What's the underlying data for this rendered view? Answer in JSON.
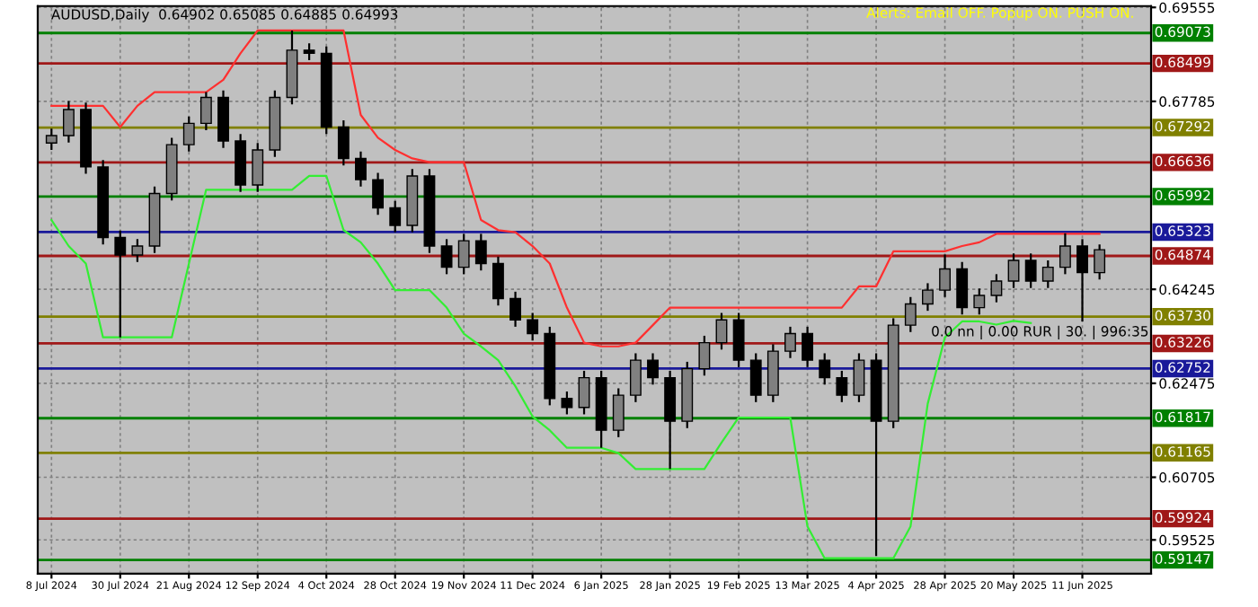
{
  "chart_data": {
    "type": "candlestick",
    "title": "AUDUSD,Daily  0.64902 0.65085 0.64885 0.64993",
    "categories": [
      "8 Jul 2024",
      null,
      null,
      null,
      "30 Jul 2024",
      null,
      null,
      null,
      "21 Aug 2024",
      null,
      null,
      null,
      "12 Sep 2024",
      null,
      null,
      null,
      "4 Oct 2024",
      null,
      null,
      null,
      "28 Oct 2024",
      null,
      null,
      null,
      "19 Nov 2024",
      null,
      null,
      null,
      "11 Dec 2024",
      null,
      null,
      null,
      "6 Jan 2025",
      null,
      null,
      null,
      "28 Jan 2025",
      null,
      null,
      null,
      "19 Feb 2025",
      null,
      null,
      null,
      "13 Mar 2025",
      null,
      null,
      null,
      "4 Apr 2025",
      null,
      null,
      null,
      "28 Apr 2025",
      null,
      null,
      null,
      "20 May 2025",
      null,
      null,
      null,
      "11 Jun 2025",
      null
    ],
    "ohlc": [
      [
        0.67,
        0.6727,
        0.6687,
        0.6714
      ],
      [
        0.6714,
        0.6779,
        0.6701,
        0.6763
      ],
      [
        0.6763,
        0.6776,
        0.6642,
        0.6655
      ],
      [
        0.6655,
        0.6668,
        0.6509,
        0.6522
      ],
      [
        0.6522,
        0.6535,
        0.6334,
        0.6489
      ],
      [
        0.6489,
        0.6519,
        0.6476,
        0.6506
      ],
      [
        0.6506,
        0.6618,
        0.6493,
        0.6605
      ],
      [
        0.6605,
        0.671,
        0.6592,
        0.6697
      ],
      [
        0.6697,
        0.675,
        0.6684,
        0.6737
      ],
      [
        0.6737,
        0.6796,
        0.6724,
        0.6786
      ],
      [
        0.6786,
        0.6799,
        0.6691,
        0.6704
      ],
      [
        0.6704,
        0.6717,
        0.6608,
        0.6621
      ],
      [
        0.6621,
        0.67,
        0.6608,
        0.6687
      ],
      [
        0.6687,
        0.6799,
        0.6674,
        0.6786
      ],
      [
        0.6786,
        0.6912,
        0.6773,
        0.6875
      ],
      [
        0.6875,
        0.6888,
        0.6856,
        0.6869
      ],
      [
        0.6869,
        0.6882,
        0.6717,
        0.673
      ],
      [
        0.673,
        0.6743,
        0.6658,
        0.6671
      ],
      [
        0.6671,
        0.6684,
        0.6618,
        0.6631
      ],
      [
        0.6631,
        0.6644,
        0.6565,
        0.6578
      ],
      [
        0.6578,
        0.6591,
        0.6532,
        0.6545
      ],
      [
        0.6545,
        0.6651,
        0.6532,
        0.6638
      ],
      [
        0.6638,
        0.6651,
        0.6493,
        0.6506
      ],
      [
        0.6506,
        0.6519,
        0.6453,
        0.6466
      ],
      [
        0.6466,
        0.6529,
        0.6453,
        0.6516
      ],
      [
        0.6516,
        0.6529,
        0.646,
        0.6473
      ],
      [
        0.6473,
        0.6486,
        0.6394,
        0.6407
      ],
      [
        0.6407,
        0.642,
        0.6354,
        0.6367
      ],
      [
        0.6367,
        0.638,
        0.6328,
        0.6341
      ],
      [
        0.6341,
        0.6354,
        0.6206,
        0.6219
      ],
      [
        0.6219,
        0.6232,
        0.6189,
        0.6202
      ],
      [
        0.6202,
        0.6271,
        0.6189,
        0.6258
      ],
      [
        0.6258,
        0.6271,
        0.6126,
        0.6159
      ],
      [
        0.6159,
        0.6238,
        0.6146,
        0.6225
      ],
      [
        0.6225,
        0.6304,
        0.6212,
        0.6291
      ],
      [
        0.6291,
        0.6304,
        0.6245,
        0.6258
      ],
      [
        0.6258,
        0.6271,
        0.6086,
        0.6176
      ],
      [
        0.6176,
        0.6288,
        0.6163,
        0.6275
      ],
      [
        0.6275,
        0.6337,
        0.6262,
        0.6324
      ],
      [
        0.6324,
        0.638,
        0.6311,
        0.6367
      ],
      [
        0.6367,
        0.638,
        0.6278,
        0.6291
      ],
      [
        0.6291,
        0.6304,
        0.6212,
        0.6225
      ],
      [
        0.6225,
        0.6321,
        0.6212,
        0.6308
      ],
      [
        0.6308,
        0.6354,
        0.6295,
        0.6341
      ],
      [
        0.6341,
        0.6354,
        0.6278,
        0.6291
      ],
      [
        0.6291,
        0.6304,
        0.6245,
        0.6258
      ],
      [
        0.6258,
        0.6271,
        0.6212,
        0.6225
      ],
      [
        0.6225,
        0.6304,
        0.6212,
        0.6291
      ],
      [
        0.6291,
        0.6304,
        0.5922,
        0.6176
      ],
      [
        0.6176,
        0.637,
        0.6163,
        0.6357
      ],
      [
        0.6357,
        0.641,
        0.6344,
        0.6397
      ],
      [
        0.6397,
        0.6436,
        0.6384,
        0.6423
      ],
      [
        0.6423,
        0.649,
        0.641,
        0.6463
      ],
      [
        0.6463,
        0.6476,
        0.6377,
        0.639
      ],
      [
        0.639,
        0.6426,
        0.6377,
        0.6413
      ],
      [
        0.6413,
        0.6453,
        0.64,
        0.644
      ],
      [
        0.644,
        0.6492,
        0.6427,
        0.6479
      ],
      [
        0.6479,
        0.6492,
        0.6427,
        0.644
      ],
      [
        0.644,
        0.6479,
        0.6427,
        0.6466
      ],
      [
        0.6466,
        0.653,
        0.6453,
        0.6506
      ],
      [
        0.6506,
        0.6519,
        0.6364,
        0.6456
      ],
      [
        0.6456,
        0.6509,
        0.6443,
        0.6499
      ]
    ],
    "series": [
      {
        "type": "line",
        "color": "#ff3030",
        "values": [
          0.677,
          0.677,
          0.677,
          0.677,
          0.673,
          0.677,
          0.6796,
          0.6796,
          0.6796,
          0.6796,
          0.6819,
          0.6869,
          0.6912,
          0.6912,
          0.6912,
          0.6912,
          0.6912,
          0.6912,
          0.6753,
          0.671,
          0.6687,
          0.6671,
          0.6664,
          0.6664,
          0.6664,
          0.6555,
          0.6536,
          0.6532,
          0.6506,
          0.6473,
          0.639,
          0.6324,
          0.6317,
          0.6317,
          0.6324,
          0.6357,
          0.639,
          0.639,
          0.639,
          0.639,
          0.639,
          0.639,
          0.639,
          0.639,
          0.639,
          0.639,
          0.639,
          0.643,
          0.643,
          0.6496,
          0.6496,
          0.6496,
          0.6496,
          0.6506,
          0.6513,
          0.6529,
          0.6529,
          0.6529,
          0.6529,
          0.6529,
          0.6529,
          0.6529
        ]
      },
      {
        "type": "line",
        "color": "#33ee33",
        "values": [
          0.6555,
          0.6506,
          0.6473,
          0.6334,
          0.6334,
          0.6334,
          0.6334,
          0.6334,
          0.6473,
          0.6612,
          0.6612,
          0.6612,
          0.6612,
          0.6612,
          0.6612,
          0.6638,
          0.6638,
          0.6536,
          0.6513,
          0.6473,
          0.6423,
          0.6423,
          0.6423,
          0.639,
          0.6341,
          0.6317,
          0.6291,
          0.6242,
          0.6185,
          0.6159,
          0.6126,
          0.6126,
          0.6126,
          0.6116,
          0.6086,
          0.6086,
          0.6086,
          0.6086,
          0.6086,
          0.6136,
          0.6183,
          0.6183,
          0.6183,
          0.6183,
          0.5978,
          0.5918,
          0.5918,
          0.5918,
          0.5918,
          0.5918,
          0.5978,
          0.6209,
          0.6334,
          0.6364,
          0.6364,
          0.6358,
          0.6365,
          0.6361,
          null,
          null,
          null,
          null
        ]
      }
    ],
    "ylim": [
      0.5889,
      0.6958
    ],
    "yticks": [
      0.59525,
      0.60705,
      0.62475,
      0.64245,
      0.67785,
      0.69555
    ],
    "grid": true,
    "ref_lines": [
      {
        "axis": "y",
        "value": 0.69073,
        "label": "0.69073",
        "color": "#008000"
      },
      {
        "axis": "y",
        "value": 0.68499,
        "label": "0.68499",
        "color": "#a01818"
      },
      {
        "axis": "y",
        "value": 0.67292,
        "label": "0.67292",
        "color": "#808000"
      },
      {
        "axis": "y",
        "value": 0.66636,
        "label": "0.66636",
        "color": "#a01818"
      },
      {
        "axis": "y",
        "value": 0.65992,
        "label": "0.65992",
        "color": "#008000"
      },
      {
        "axis": "y",
        "value": 0.65323,
        "label": "0.65323",
        "color": "#1a1a9a"
      },
      {
        "axis": "y",
        "value": 0.64874,
        "label": "0.64874",
        "color": "#a01818"
      },
      {
        "axis": "y",
        "value": 0.6373,
        "label": "0.63730",
        "color": "#808000"
      },
      {
        "axis": "y",
        "value": 0.63226,
        "label": "0.63226",
        "color": "#a01818"
      },
      {
        "axis": "y",
        "value": 0.62752,
        "label": "0.62752",
        "color": "#1a1a9a"
      },
      {
        "axis": "y",
        "value": 0.61817,
        "label": "0.61817",
        "color": "#008000"
      },
      {
        "axis": "y",
        "value": 0.61165,
        "label": "0.61165",
        "color": "#808000"
      },
      {
        "axis": "y",
        "value": 0.59924,
        "label": "0.59924",
        "color": "#a01818"
      },
      {
        "axis": "y",
        "value": 0.59147,
        "label": "0.59147",
        "color": "#008000"
      }
    ],
    "annotations": [
      "Alerts: Email OFF. Popup ON. PUSH ON.",
      "0.0 nn | 0.00 RUR | 30. | 996:35"
    ]
  }
}
